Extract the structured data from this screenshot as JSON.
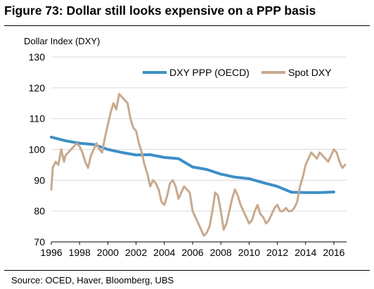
{
  "figure": {
    "title": "Figure 73: Dollar still looks expensive on a PPP basis",
    "source": "Source:  OCED, Haver, Bloomberg, UBS"
  },
  "chart_data": {
    "type": "line",
    "title": "Figure 73: Dollar still looks expensive on a PPP basis",
    "ylabel": "Dollar Index (DXY)",
    "xlabel": "",
    "xlim": [
      1996,
      2016.9
    ],
    "ylim": [
      70,
      130
    ],
    "x_ticks": [
      "1996",
      "1998",
      "2000",
      "2002",
      "2004",
      "2006",
      "2008",
      "2010",
      "2012",
      "2014",
      "2016"
    ],
    "y_ticks": [
      "70",
      "80",
      "90",
      "100",
      "110",
      "120",
      "130"
    ],
    "grid": "horizontal",
    "legend_placement": "top",
    "series": [
      {
        "name": "DXY PPP (OECD)",
        "color": "#3d8fc6",
        "x": [
          1996,
          1997,
          1998,
          1999,
          2000,
          2001,
          2002,
          2003,
          2004,
          2005,
          2006,
          2007,
          2008,
          2009,
          2010,
          2011,
          2012,
          2013,
          2014,
          2015,
          2016
        ],
        "y": [
          104,
          102.8,
          102,
          101.6,
          100,
          99,
          98.2,
          98.3,
          97.4,
          97,
          94.3,
          93.5,
          92,
          91,
          90.5,
          89.2,
          88,
          86.1,
          86,
          86,
          86.2
        ]
      },
      {
        "name": "Spot DXY",
        "color": "#c8a98e",
        "x": [
          1996.0,
          1996.1,
          1996.3,
          1996.5,
          1996.7,
          1996.9,
          1997.0,
          1997.2,
          1997.4,
          1997.6,
          1997.8,
          1998.0,
          1998.2,
          1998.4,
          1998.6,
          1998.8,
          1999.0,
          1999.2,
          1999.4,
          1999.6,
          1999.8,
          2000.0,
          2000.2,
          2000.4,
          2000.6,
          2000.8,
          2001.0,
          2001.2,
          2001.4,
          2001.6,
          2001.8,
          2002.0,
          2002.2,
          2002.4,
          2002.6,
          2002.8,
          2003.0,
          2003.2,
          2003.4,
          2003.6,
          2003.8,
          2004.0,
          2004.2,
          2004.4,
          2004.6,
          2004.8,
          2005.0,
          2005.2,
          2005.4,
          2005.6,
          2005.8,
          2006.0,
          2006.2,
          2006.4,
          2006.6,
          2006.8,
          2007.0,
          2007.2,
          2007.4,
          2007.6,
          2007.8,
          2008.0,
          2008.2,
          2008.4,
          2008.6,
          2008.8,
          2009.0,
          2009.2,
          2009.4,
          2009.6,
          2009.8,
          2010.0,
          2010.2,
          2010.4,
          2010.6,
          2010.8,
          2011.0,
          2011.2,
          2011.4,
          2011.6,
          2011.8,
          2012.0,
          2012.2,
          2012.4,
          2012.6,
          2012.8,
          2013.0,
          2013.2,
          2013.4,
          2013.6,
          2013.8,
          2014.0,
          2014.2,
          2014.4,
          2014.6,
          2014.8,
          2015.0,
          2015.2,
          2015.4,
          2015.6,
          2015.8,
          2016.0,
          2016.2,
          2016.4,
          2016.6,
          2016.8
        ],
        "y": [
          87,
          94,
          96,
          95,
          100,
          96,
          98,
          99,
          100,
          101,
          102,
          101,
          99,
          96,
          94,
          98,
          100,
          102,
          100,
          99,
          104,
          108,
          112,
          115,
          113,
          118,
          117,
          116,
          115,
          110,
          107,
          106,
          102,
          99,
          95,
          92,
          88,
          90,
          89,
          87,
          83,
          82,
          85,
          89,
          90,
          88,
          84,
          86,
          88,
          87,
          86,
          80,
          78,
          76,
          74,
          72,
          73,
          75,
          80,
          86,
          85,
          80,
          74,
          76,
          80,
          84,
          87,
          85,
          82,
          80,
          78,
          76,
          77,
          80,
          82,
          79,
          78,
          76,
          77,
          79,
          81,
          82,
          80,
          80,
          81,
          80,
          80,
          81,
          83,
          88,
          91,
          95,
          97,
          99,
          98,
          97,
          99,
          98,
          97,
          96,
          98,
          100,
          99,
          96,
          94,
          95
        ]
      }
    ]
  }
}
